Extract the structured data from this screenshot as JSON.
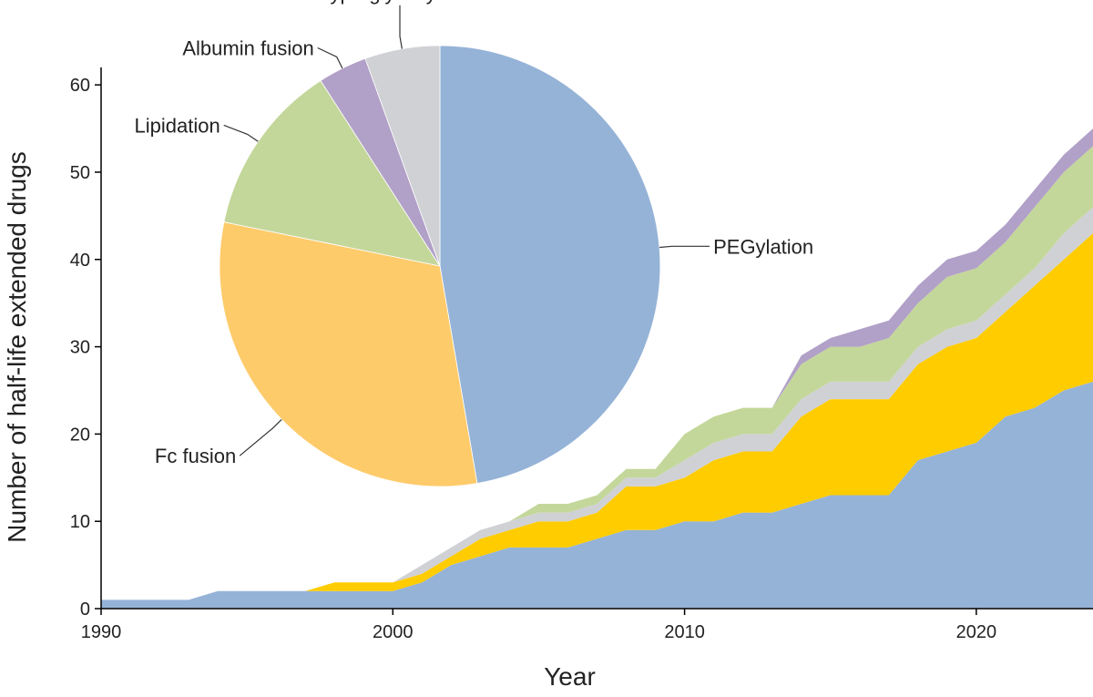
{
  "chart_data": [
    {
      "type": "area",
      "stacked": true,
      "xlabel": "Year",
      "ylabel": "Number of half-life extended drugs",
      "xlim": [
        1990,
        2024
      ],
      "ylim": [
        0,
        62
      ],
      "x_ticks": [
        1990,
        2000,
        2010,
        2020
      ],
      "y_ticks": [
        0,
        10,
        20,
        30,
        40,
        50,
        60
      ],
      "grid": false,
      "x": [
        1990,
        1991,
        1992,
        1993,
        1994,
        1995,
        1996,
        1997,
        1998,
        1999,
        2000,
        2001,
        2002,
        2003,
        2004,
        2005,
        2006,
        2007,
        2008,
        2009,
        2010,
        2011,
        2012,
        2013,
        2014,
        2015,
        2016,
        2017,
        2018,
        2019,
        2020,
        2021,
        2022,
        2023,
        2024
      ],
      "series": [
        {
          "name": "PEGylation",
          "color": "#95b3d7",
          "values": [
            1,
            1,
            1,
            1,
            2,
            2,
            2,
            2,
            2,
            2,
            2,
            3,
            5,
            6,
            7,
            7,
            7,
            8,
            9,
            9,
            10,
            10,
            11,
            11,
            12,
            13,
            13,
            13,
            17,
            18,
            19,
            22,
            23,
            25,
            26
          ]
        },
        {
          "name": "Fc fusion",
          "color": "#ffcc00",
          "values": [
            0,
            0,
            0,
            0,
            0,
            0,
            0,
            0,
            1,
            1,
            1,
            1,
            1,
            2,
            2,
            3,
            3,
            3,
            5,
            5,
            5,
            7,
            7,
            7,
            10,
            11,
            11,
            11,
            11,
            12,
            12,
            12,
            14,
            15,
            17
          ]
        },
        {
          "name": "Hyperglycosylation",
          "color": "#d0d1d5",
          "values": [
            0,
            0,
            0,
            0,
            0,
            0,
            0,
            0,
            0,
            0,
            0,
            1,
            1,
            1,
            1,
            1,
            1,
            1,
            1,
            1,
            2,
            2,
            2,
            2,
            2,
            2,
            2,
            2,
            2,
            2,
            2,
            2,
            2,
            3,
            3
          ]
        },
        {
          "name": "Lipidation",
          "color": "#c4d79b",
          "values": [
            0,
            0,
            0,
            0,
            0,
            0,
            0,
            0,
            0,
            0,
            0,
            0,
            0,
            0,
            0,
            1,
            1,
            1,
            1,
            1,
            3,
            3,
            3,
            3,
            4,
            4,
            4,
            5,
            5,
            6,
            6,
            6,
            7,
            7,
            7
          ]
        },
        {
          "name": "Albumin fusion",
          "color": "#b1a0c7",
          "values": [
            0,
            0,
            0,
            0,
            0,
            0,
            0,
            0,
            0,
            0,
            0,
            0,
            0,
            0,
            0,
            0,
            0,
            0,
            0,
            0,
            0,
            0,
            0,
            0,
            1,
            1,
            2,
            2,
            2,
            2,
            2,
            2,
            2,
            2,
            2
          ]
        }
      ]
    },
    {
      "type": "pie",
      "slices": [
        {
          "label": "PEGylation",
          "value": 47.3,
          "color": "#95b3d7"
        },
        {
          "label": "Fc fusion",
          "value": 30.9,
          "color": "#fecb6b"
        },
        {
          "label": "Lipidation",
          "value": 12.7,
          "color": "#c4d79b"
        },
        {
          "label": "Albumin fusion",
          "value": 3.6,
          "color": "#b1a0c7"
        },
        {
          "label": "Hyperglycosylation",
          "value": 5.5,
          "color": "#d0d1d5"
        }
      ]
    }
  ]
}
